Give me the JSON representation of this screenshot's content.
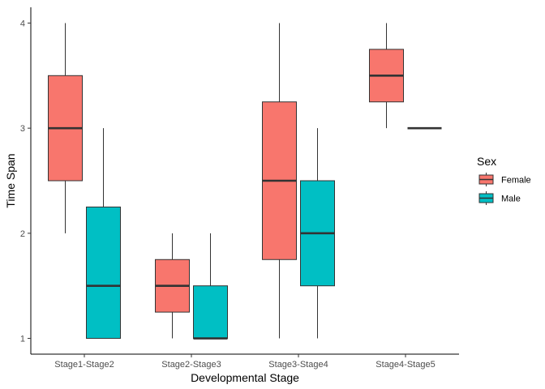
{
  "chart_data": {
    "type": "boxplot",
    "xlabel": "Developmental Stage",
    "ylabel": "Time Span",
    "ylim": [
      0.85,
      4.15
    ],
    "yticks": [
      1,
      2,
      3,
      4
    ],
    "categories": [
      "Stage1-Stage2",
      "Stage2-Stage3",
      "Stage3-Stage4",
      "Stage4-Stage5"
    ],
    "legend": {
      "title": "Sex",
      "position": "right"
    },
    "grid": false,
    "series": [
      {
        "name": "Female",
        "color": "#F8766D",
        "boxes": [
          {
            "min": 2,
            "q1": 2.5,
            "median": 3,
            "q3": 3.5,
            "max": 4
          },
          {
            "min": 1,
            "q1": 1.25,
            "median": 1.5,
            "q3": 1.75,
            "max": 2
          },
          {
            "min": 1,
            "q1": 1.75,
            "median": 2.5,
            "q3": 3.25,
            "max": 4
          },
          {
            "min": 3,
            "q1": 3.25,
            "median": 3.5,
            "q3": 3.75,
            "max": 4
          }
        ]
      },
      {
        "name": "Male",
        "color": "#00BFC4",
        "boxes": [
          {
            "min": 1,
            "q1": 1,
            "median": 1.5,
            "q3": 2.25,
            "max": 3
          },
          {
            "min": 1,
            "q1": 1,
            "median": 1,
            "q3": 1.5,
            "max": 2
          },
          {
            "min": 1,
            "q1": 1.5,
            "median": 2,
            "q3": 2.5,
            "max": 3
          },
          {
            "min": 3,
            "q1": 3,
            "median": 3,
            "q3": 3,
            "max": 3
          }
        ]
      }
    ]
  }
}
